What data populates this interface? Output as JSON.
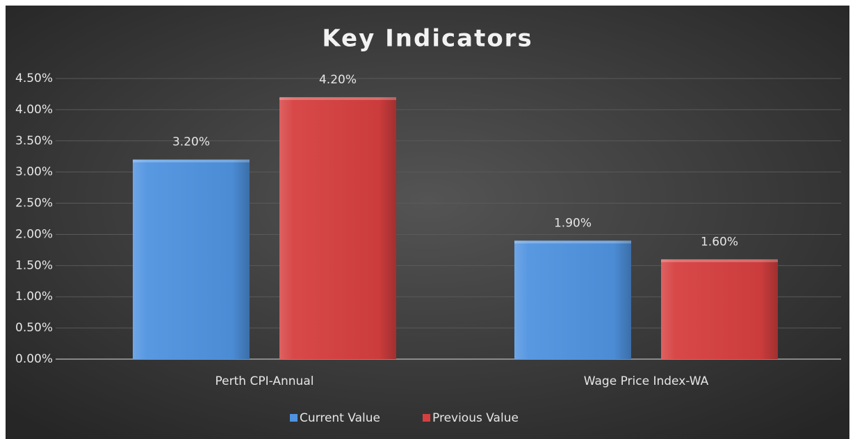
{
  "chart_data": {
    "type": "bar",
    "title": "Key Indicators",
    "categories": [
      "Perth CPI-Annual",
      "Wage Price Index-WA"
    ],
    "series": [
      {
        "name": "Current Value",
        "color": "#4f93e0",
        "values": [
          3.2,
          1.9
        ],
        "value_labels": [
          "3.20%",
          "1.90%"
        ]
      },
      {
        "name": "Previous Value",
        "color": "#d63f3f",
        "values": [
          4.2,
          1.6
        ],
        "value_labels": [
          "4.20%",
          "1.60%"
        ]
      }
    ],
    "ylim": [
      0,
      4.5
    ],
    "yticks": [
      {
        "value": 0,
        "label": "0.00%"
      },
      {
        "value": 0.5,
        "label": "0.50%"
      },
      {
        "value": 1,
        "label": "1.00%"
      },
      {
        "value": 1.5,
        "label": "1.50%"
      },
      {
        "value": 2,
        "label": "2.00%"
      },
      {
        "value": 2.5,
        "label": "2.50%"
      },
      {
        "value": 3,
        "label": "3.00%"
      },
      {
        "value": 3.5,
        "label": "3.50%"
      },
      {
        "value": 4,
        "label": "4.00%"
      },
      {
        "value": 4.5,
        "label": "4.50%"
      }
    ],
    "grid": true,
    "legend": "bottom"
  }
}
